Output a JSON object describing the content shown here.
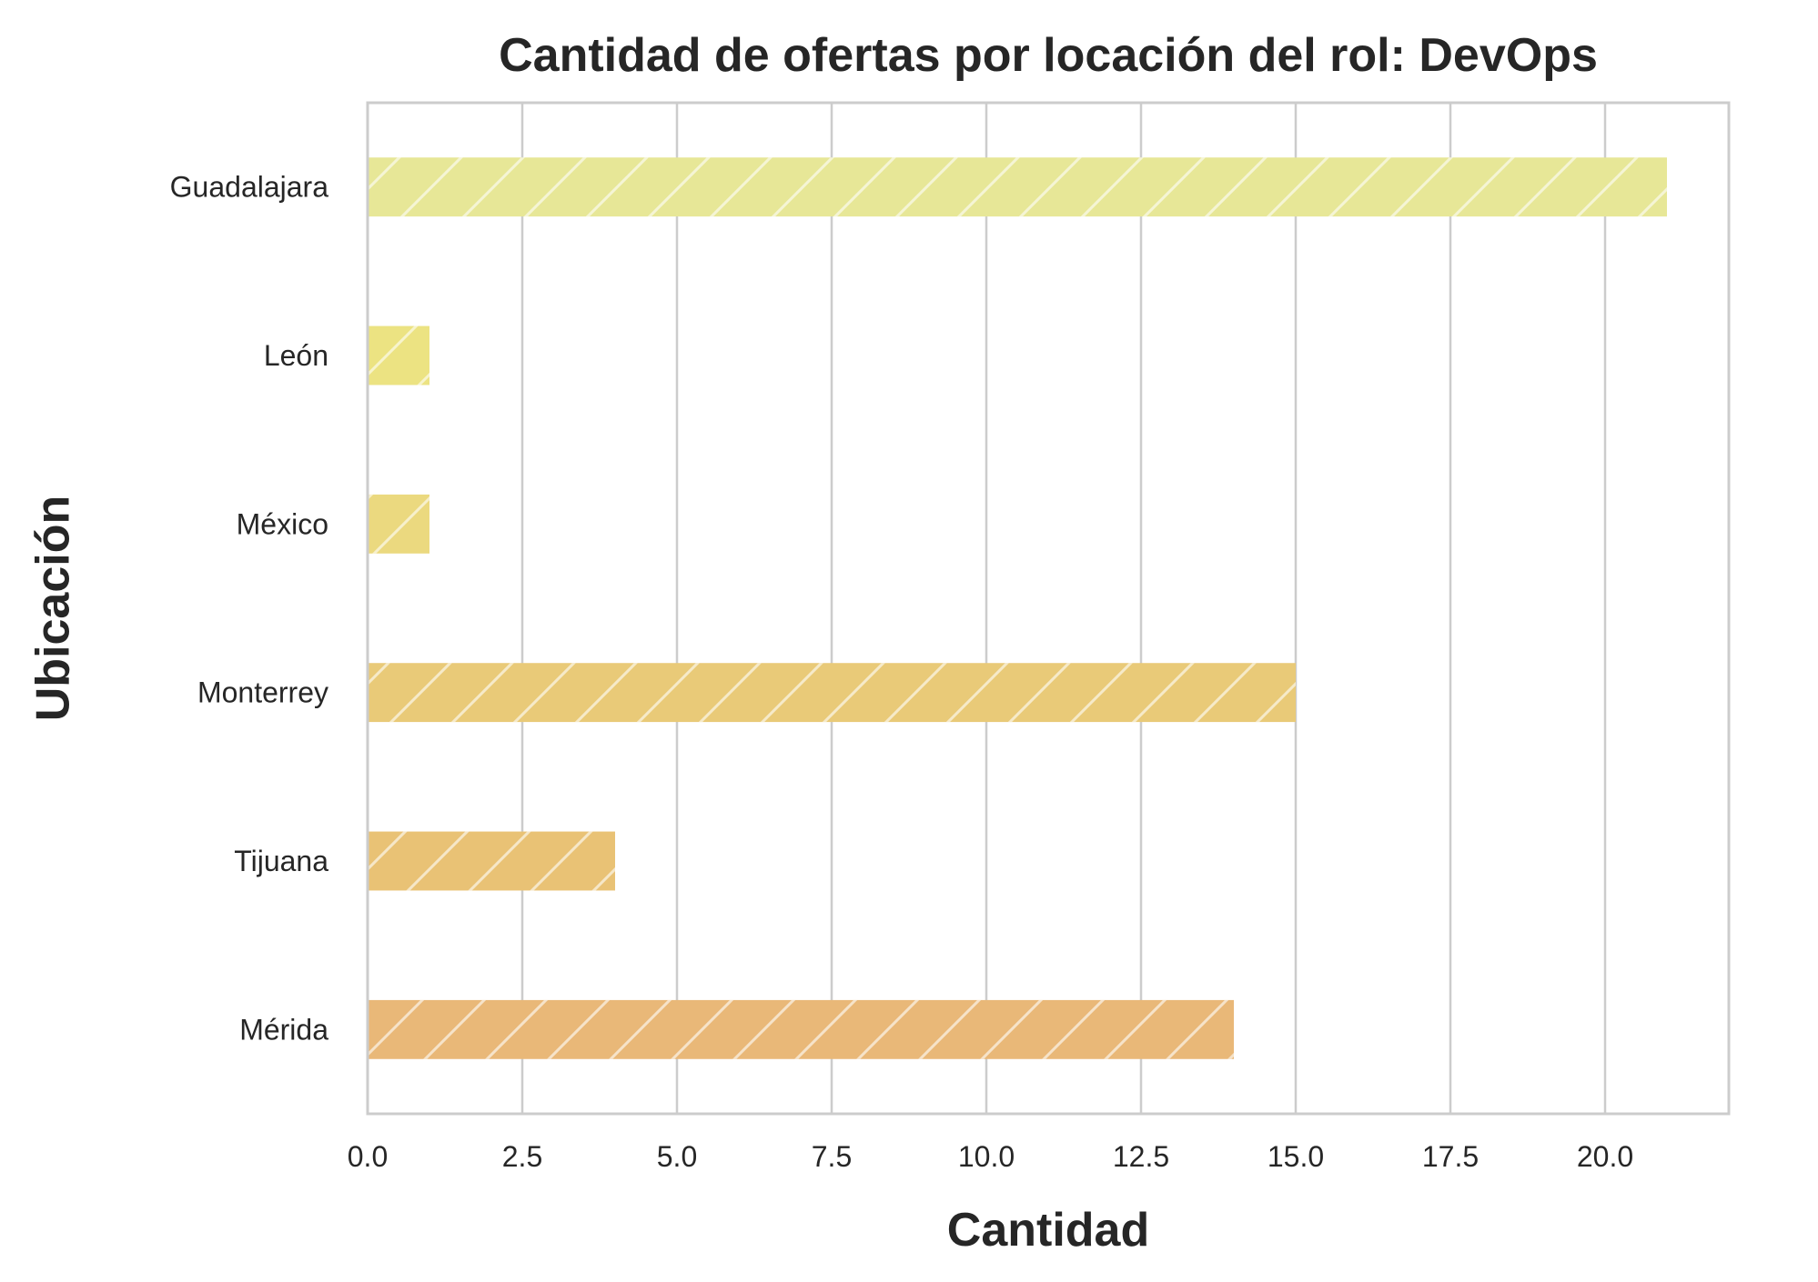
{
  "chart_data": {
    "type": "bar",
    "orientation": "horizontal",
    "title": "Cantidad de ofertas por locación del rol: DevOps",
    "xlabel": "Cantidad",
    "ylabel": "Ubicación",
    "categories": [
      "Guadalajara",
      "León",
      "México",
      "Monterrey",
      "Tijuana",
      "Mérida"
    ],
    "values": [
      21,
      1,
      1,
      15,
      4,
      14
    ],
    "colors": [
      "#e7e797",
      "#ece382",
      "#ebd97f",
      "#e9ca78",
      "#e9c275",
      "#e9b878"
    ],
    "xlim": [
      0,
      22
    ],
    "xticks": [
      0,
      2.5,
      5,
      7.5,
      10,
      12.5,
      15,
      17.5,
      20
    ],
    "xtick_labels": [
      "0.0",
      "2.5",
      "5.0",
      "7.5",
      "10.0",
      "12.5",
      "15.0",
      "17.5",
      "20.0"
    ],
    "grid": "vertical",
    "hatch": "diagonal"
  }
}
